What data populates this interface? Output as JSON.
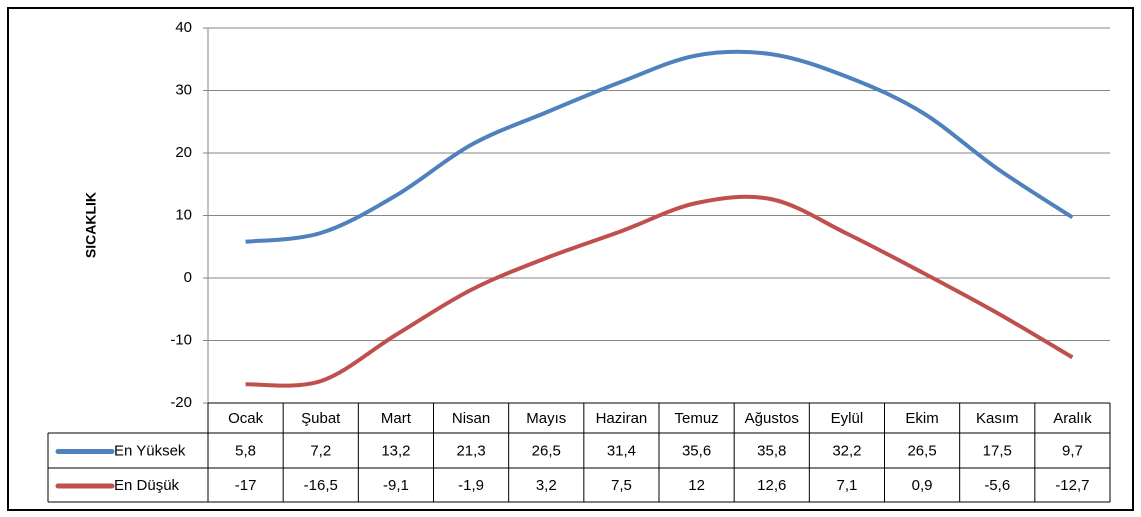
{
  "chart_data": {
    "type": "line",
    "y_label": "SICAKLIK",
    "categories": [
      "Ocak",
      "Şubat",
      "Mart",
      "Nisan",
      "Mayıs",
      "Haziran",
      "Temuz",
      "Ağustos",
      "Eylül",
      "Ekim",
      "Kasım",
      "Aralık"
    ],
    "series": [
      {
        "name": "En Yüksek",
        "color": "#4f81bd",
        "values": [
          5.8,
          7.2,
          13.2,
          21.3,
          26.5,
          31.4,
          35.6,
          35.8,
          32.2,
          26.5,
          17.5,
          9.7
        ],
        "value_labels": [
          "5,8",
          "7,2",
          "13,2",
          "21,3",
          "26,5",
          "31,4",
          "35,6",
          "35,8",
          "32,2",
          "26,5",
          "17,5",
          "9,7"
        ]
      },
      {
        "name": "En Düşük",
        "color": "#c0504d",
        "values": [
          -17,
          -16.5,
          -9.1,
          -1.9,
          3.2,
          7.5,
          12,
          12.6,
          7.1,
          0.9,
          -5.6,
          -12.7
        ],
        "value_labels": [
          "-17",
          "-16,5",
          "-9,1",
          "-1,9",
          "3,2",
          "7,5",
          "12",
          "12,6",
          "7,1",
          "0,9",
          "-5,6",
          "-12,7"
        ]
      }
    ],
    "ylim": [
      -20,
      40
    ],
    "yticks": [
      -20,
      -10,
      0,
      10,
      20,
      30,
      40
    ],
    "grid": true
  }
}
